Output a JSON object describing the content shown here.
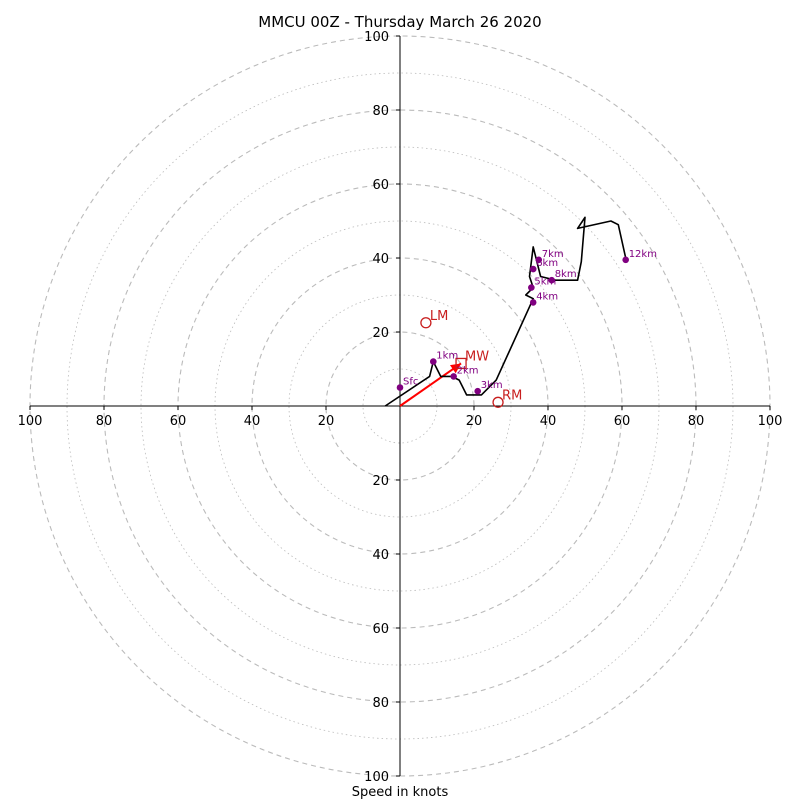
{
  "chart_data": {
    "type": "hodograph",
    "title": "MMCU 00Z - Thursday March 26 2020",
    "xlabel": "Speed in knots",
    "ylabel": "",
    "xlim": [
      -100,
      100
    ],
    "ylim": [
      -100,
      100
    ],
    "ring_major_step": 20,
    "ring_minor_step": 10,
    "tick_labels": [
      "100",
      "80",
      "60",
      "40",
      "20",
      "20",
      "40",
      "60",
      "80",
      "100"
    ],
    "ticks": [
      -100,
      -80,
      -60,
      -40,
      -20,
      20,
      40,
      60,
      80,
      100
    ],
    "grid": true,
    "colors": {
      "trace": "#000000",
      "height_point": "#800080",
      "motion": "#c81e1e",
      "mean_wind_arrow": "#ff0000",
      "grid": "#bbbbbb"
    },
    "trace": [
      [
        -4,
        0
      ],
      [
        8,
        8
      ],
      [
        9,
        12
      ],
      [
        11,
        8
      ],
      [
        14,
        8
      ],
      [
        16,
        7
      ],
      [
        18,
        3
      ],
      [
        22,
        3
      ],
      [
        26,
        7
      ],
      [
        36,
        29
      ],
      [
        34,
        30
      ],
      [
        36,
        32
      ],
      [
        35,
        35
      ],
      [
        36,
        43
      ],
      [
        38,
        35
      ],
      [
        42,
        34
      ],
      [
        48,
        34
      ],
      [
        49,
        39
      ],
      [
        50,
        51
      ],
      [
        48,
        48
      ],
      [
        57,
        50
      ],
      [
        59,
        49
      ],
      [
        61,
        40
      ]
    ],
    "height_points": [
      {
        "label": "Sfc",
        "u": 0,
        "v": 5
      },
      {
        "label": "1km",
        "u": 9,
        "v": 12
      },
      {
        "label": "2km",
        "u": 14.5,
        "v": 8
      },
      {
        "label": "3km",
        "u": 21,
        "v": 4
      },
      {
        "label": "4km",
        "u": 36,
        "v": 28
      },
      {
        "label": "5km",
        "u": 35.5,
        "v": 32
      },
      {
        "label": "6km",
        "u": 36,
        "v": 37
      },
      {
        "label": "7km",
        "u": 37.5,
        "v": 39.5
      },
      {
        "label": "8km",
        "u": 41,
        "v": 34
      },
      {
        "label": "12km",
        "u": 61,
        "v": 39.5
      }
    ],
    "storm_motion": [
      {
        "label": "LM",
        "u": 7,
        "v": 22.5
      },
      {
        "label": "RM",
        "u": 26.5,
        "v": 1
      },
      {
        "label": "MW",
        "u": 16.5,
        "v": 11.5
      }
    ],
    "mean_wind_vector": {
      "from": [
        0,
        0
      ],
      "to": [
        16.5,
        11.5
      ]
    }
  }
}
